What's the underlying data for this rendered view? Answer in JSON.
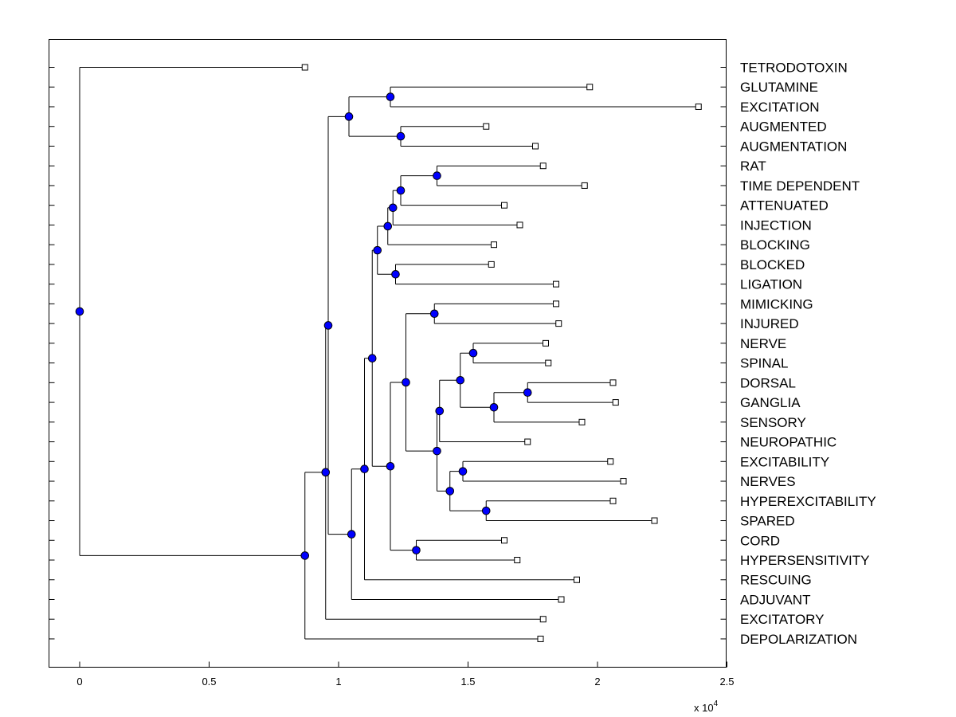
{
  "chart_data": {
    "type": "dendrogram",
    "orientation": "horizontal",
    "title": "",
    "xlabel": "",
    "ylabel": "",
    "x_scale_label": "x 10",
    "x_scale_exponent": "4",
    "xlim": [
      -0.12,
      2.5
    ],
    "xticks": [
      0,
      0.5,
      1,
      1.5,
      2,
      2.5
    ],
    "xtick_labels": [
      "0",
      "0.5",
      "1",
      "1.5",
      "2",
      "2.5"
    ],
    "x_units_multiplier": 10000,
    "leaf_color": "#ffffff",
    "node_color": "#0000ff",
    "leaves": [
      {
        "label": "TETRODOTOXIN",
        "x": 0.87
      },
      {
        "label": "GLUTAMINE",
        "x": 1.97
      },
      {
        "label": "EXCITATION",
        "x": 2.39
      },
      {
        "label": "AUGMENTED",
        "x": 1.57
      },
      {
        "label": "AUGMENTATION",
        "x": 1.76
      },
      {
        "label": "RAT",
        "x": 1.79
      },
      {
        "label": "TIME DEPENDENT",
        "x": 1.95
      },
      {
        "label": "ATTENUATED",
        "x": 1.64
      },
      {
        "label": "INJECTION",
        "x": 1.7
      },
      {
        "label": "BLOCKING",
        "x": 1.6
      },
      {
        "label": "BLOCKED",
        "x": 1.59
      },
      {
        "label": "LIGATION",
        "x": 1.84
      },
      {
        "label": "MIMICKING",
        "x": 1.84
      },
      {
        "label": "INJURED",
        "x": 1.85
      },
      {
        "label": "NERVE",
        "x": 1.8
      },
      {
        "label": "SPINAL",
        "x": 1.81
      },
      {
        "label": "DORSAL",
        "x": 2.06
      },
      {
        "label": "GANGLIA",
        "x": 2.07
      },
      {
        "label": "SENSORY",
        "x": 1.94
      },
      {
        "label": "NEUROPATHIC",
        "x": 1.73
      },
      {
        "label": "EXCITABILITY",
        "x": 2.05
      },
      {
        "label": "NERVES",
        "x": 2.1
      },
      {
        "label": "HYPEREXCITABILITY",
        "x": 2.06
      },
      {
        "label": "SPARED",
        "x": 2.22
      },
      {
        "label": "CORD",
        "x": 1.64
      },
      {
        "label": "HYPERSENSITIVITY",
        "x": 1.69
      },
      {
        "label": "RESCUING",
        "x": 1.92
      },
      {
        "label": "ADJUVANT",
        "x": 1.86
      },
      {
        "label": "EXCITATORY",
        "x": 1.79
      },
      {
        "label": "DEPOLARIZATION",
        "x": 1.78
      }
    ],
    "merges": [
      {
        "id": "m1",
        "x": 1.2,
        "children": [
          "GLUTAMINE",
          "EXCITATION"
        ]
      },
      {
        "id": "m2",
        "x": 1.24,
        "children": [
          "AUGMENTED",
          "AUGMENTATION"
        ]
      },
      {
        "id": "m3",
        "x": 1.04,
        "children": [
          "m1",
          "m2"
        ]
      },
      {
        "id": "m4",
        "x": 1.38,
        "children": [
          "RAT",
          "TIME DEPENDENT"
        ]
      },
      {
        "id": "m5",
        "x": 1.24,
        "children": [
          "m4",
          "ATTENUATED"
        ]
      },
      {
        "id": "m6",
        "x": 1.21,
        "children": [
          "m5",
          "INJECTION"
        ]
      },
      {
        "id": "m7",
        "x": 1.19,
        "children": [
          "m6",
          "BLOCKING"
        ]
      },
      {
        "id": "m8",
        "x": 1.22,
        "children": [
          "BLOCKED",
          "LIGATION"
        ]
      },
      {
        "id": "m9",
        "x": 1.15,
        "children": [
          "m7",
          "m8"
        ]
      },
      {
        "id": "m10",
        "x": 1.37,
        "children": [
          "MIMICKING",
          "INJURED"
        ]
      },
      {
        "id": "m11",
        "x": 1.52,
        "children": [
          "NERVE",
          "SPINAL"
        ]
      },
      {
        "id": "m12",
        "x": 1.73,
        "children": [
          "DORSAL",
          "GANGLIA"
        ]
      },
      {
        "id": "m13",
        "x": 1.6,
        "children": [
          "m12",
          "SENSORY"
        ]
      },
      {
        "id": "m14",
        "x": 1.47,
        "children": [
          "m11",
          "m13"
        ]
      },
      {
        "id": "m15",
        "x": 1.39,
        "children": [
          "m14",
          "NEUROPATHIC"
        ]
      },
      {
        "id": "m16",
        "x": 1.48,
        "children": [
          "EXCITABILITY",
          "NERVES"
        ]
      },
      {
        "id": "m17",
        "x": 1.57,
        "children": [
          "HYPEREXCITABILITY",
          "SPARED"
        ]
      },
      {
        "id": "m18",
        "x": 1.43,
        "children": [
          "m16",
          "m17"
        ]
      },
      {
        "id": "m19",
        "x": 1.38,
        "children": [
          "m15",
          "m18"
        ]
      },
      {
        "id": "m20",
        "x": 1.26,
        "children": [
          "m10",
          "m19"
        ]
      },
      {
        "id": "m21",
        "x": 1.3,
        "children": [
          "CORD",
          "HYPERSENSITIVITY"
        ]
      },
      {
        "id": "m22",
        "x": 1.2,
        "children": [
          "m20",
          "m21"
        ]
      },
      {
        "id": "m23",
        "x": 1.13,
        "children": [
          "m9",
          "m22"
        ]
      },
      {
        "id": "m24",
        "x": 1.1,
        "children": [
          "m23",
          "RESCUING"
        ]
      },
      {
        "id": "m25",
        "x": 1.05,
        "children": [
          "m24",
          "ADJUVANT"
        ]
      },
      {
        "id": "m26",
        "x": 0.96,
        "children": [
          "m3",
          "m25"
        ]
      },
      {
        "id": "m27",
        "x": 0.95,
        "children": [
          "m26",
          "EXCITATORY"
        ]
      },
      {
        "id": "m28",
        "x": 0.87,
        "children": [
          "m27",
          "DEPOLARIZATION"
        ]
      },
      {
        "id": "m29",
        "x": 0.0,
        "children": [
          "TETRODOTOXIN",
          "m28"
        ]
      }
    ]
  }
}
